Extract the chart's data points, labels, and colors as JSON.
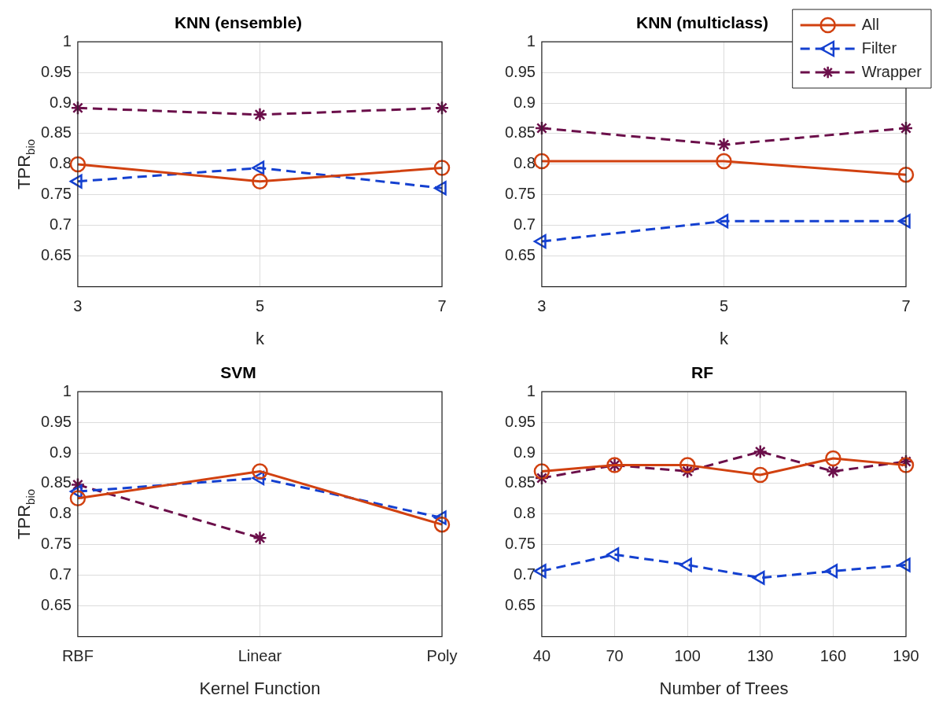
{
  "chart_data": [
    {
      "type": "line",
      "title": "KNN (ensemble)",
      "xlabel": "k",
      "ylabel": "TPR$_{bio}$",
      "x": [
        3,
        5,
        7
      ],
      "xlim": [
        3,
        7
      ],
      "xticks": [
        3,
        5,
        7
      ],
      "ylim": [
        0.6,
        1
      ],
      "yticks": [
        0.65,
        0.7,
        0.75,
        0.8,
        0.85,
        0.9,
        0.95,
        1
      ],
      "grid": true,
      "series": [
        {
          "color": "#d14110",
          "marker": "circle",
          "line_style": "solid",
          "values": [
            0.8,
            0.772,
            0.794
          ]
        },
        {
          "color": "#1440d0",
          "marker": "triangle",
          "line_style": "dashed",
          "values": [
            0.772,
            0.794,
            0.761
          ]
        },
        {
          "color": "#6b0f4a",
          "marker": "cross",
          "line_style": "dashed",
          "values": [
            0.892,
            0.881,
            0.892
          ]
        }
      ]
    },
    {
      "type": "line",
      "title": "KNN (multiclass)",
      "xlabel": "k",
      "x": [
        3,
        5,
        7
      ],
      "xlim": [
        3,
        7
      ],
      "xticks": [
        3,
        5,
        7
      ],
      "ylim": [
        0.6,
        1
      ],
      "yticks": [
        0.65,
        0.7,
        0.75,
        0.8,
        0.85,
        0.9,
        0.95,
        1
      ],
      "grid": true,
      "legend": "top right",
      "series": [
        {
          "name": "All",
          "color": "#d14110",
          "marker": "circle",
          "line_style": "solid",
          "values": [
            0.805,
            0.805,
            0.783
          ]
        },
        {
          "name": "Filter",
          "color": "#1440d0",
          "marker": "triangle",
          "line_style": "dashed",
          "values": [
            0.674,
            0.707,
            0.707
          ]
        },
        {
          "name": "Wrapper",
          "color": "#6b0f4a",
          "marker": "cross",
          "line_style": "dashed",
          "values": [
            0.859,
            0.832,
            0.859
          ]
        }
      ]
    },
    {
      "type": "line",
      "title": "SVM",
      "xlabel": "Kernel Function",
      "ylabel": "TPR$_{bio}$",
      "categories": [
        "RBF",
        "Linear",
        "Poly"
      ],
      "ylim": [
        0.6,
        1
      ],
      "yticks": [
        0.65,
        0.7,
        0.75,
        0.8,
        0.85,
        0.9,
        0.95,
        1
      ],
      "grid": true,
      "series": [
        {
          "color": "#d14110",
          "marker": "circle",
          "line_style": "solid",
          "values": [
            0.826,
            0.87,
            0.783
          ]
        },
        {
          "color": "#1440d0",
          "marker": "triangle",
          "line_style": "dashed",
          "values": [
            0.837,
            0.859,
            0.794
          ]
        },
        {
          "color": "#6b0f4a",
          "marker": "cross",
          "line_style": "dashed",
          "values": [
            0.848,
            0.761,
            null
          ]
        }
      ]
    },
    {
      "type": "line",
      "title": "RF",
      "xlabel": "Number of Trees",
      "x": [
        40,
        70,
        100,
        130,
        160,
        190
      ],
      "xlim": [
        40,
        190
      ],
      "xticks": [
        40,
        70,
        100,
        130,
        160,
        190
      ],
      "ylim": [
        0.6,
        1
      ],
      "yticks": [
        0.65,
        0.7,
        0.75,
        0.8,
        0.85,
        0.9,
        0.95,
        1
      ],
      "grid": true,
      "series": [
        {
          "color": "#d14110",
          "marker": "circle",
          "line_style": "solid",
          "values": [
            0.87,
            0.88,
            0.88,
            0.864,
            0.891,
            0.88
          ]
        },
        {
          "color": "#1440d0",
          "marker": "triangle",
          "line_style": "dashed",
          "values": [
            0.707,
            0.734,
            0.717,
            0.696,
            0.707,
            0.717
          ]
        },
        {
          "color": "#6b0f4a",
          "marker": "cross",
          "line_style": "dashed",
          "values": [
            0.859,
            0.88,
            0.87,
            0.902,
            0.87,
            0.886
          ]
        }
      ]
    }
  ]
}
